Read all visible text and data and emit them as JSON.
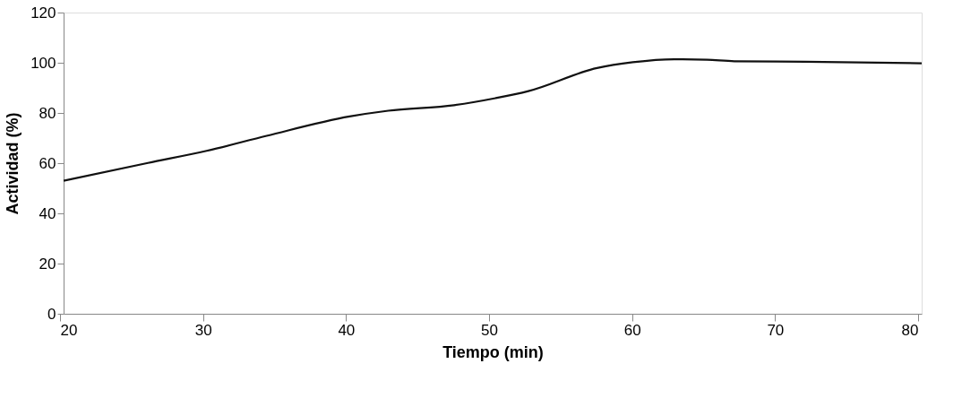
{
  "chart_data": {
    "type": "line",
    "xlabel": "Tiempo (min)",
    "ylabel": "Actividad (%)",
    "x": [
      20,
      25.9,
      30,
      34.2,
      40,
      42.7,
      47.3,
      50.2,
      52.5,
      57.3,
      59.8,
      62.7,
      65,
      66.9,
      71.9,
      80
    ],
    "series": [
      {
        "color": "#111111",
        "values": [
          53,
          60.1,
          64.9,
          70.9,
          78.6,
          80.9,
          83.1,
          85.9,
          88.7,
          97.9,
          100.2,
          101.4,
          101.2,
          100.6,
          100.4,
          99.8
        ]
      }
    ],
    "xlim": [
      20,
      80
    ],
    "xticks": [
      20,
      30,
      40,
      50,
      60,
      70,
      80
    ],
    "ylim": [
      0,
      120
    ],
    "yticks": [
      0,
      20,
      40,
      60,
      80,
      100,
      120
    ],
    "grid": false,
    "legend": false,
    "marker": "none",
    "line_style": "solid"
  }
}
